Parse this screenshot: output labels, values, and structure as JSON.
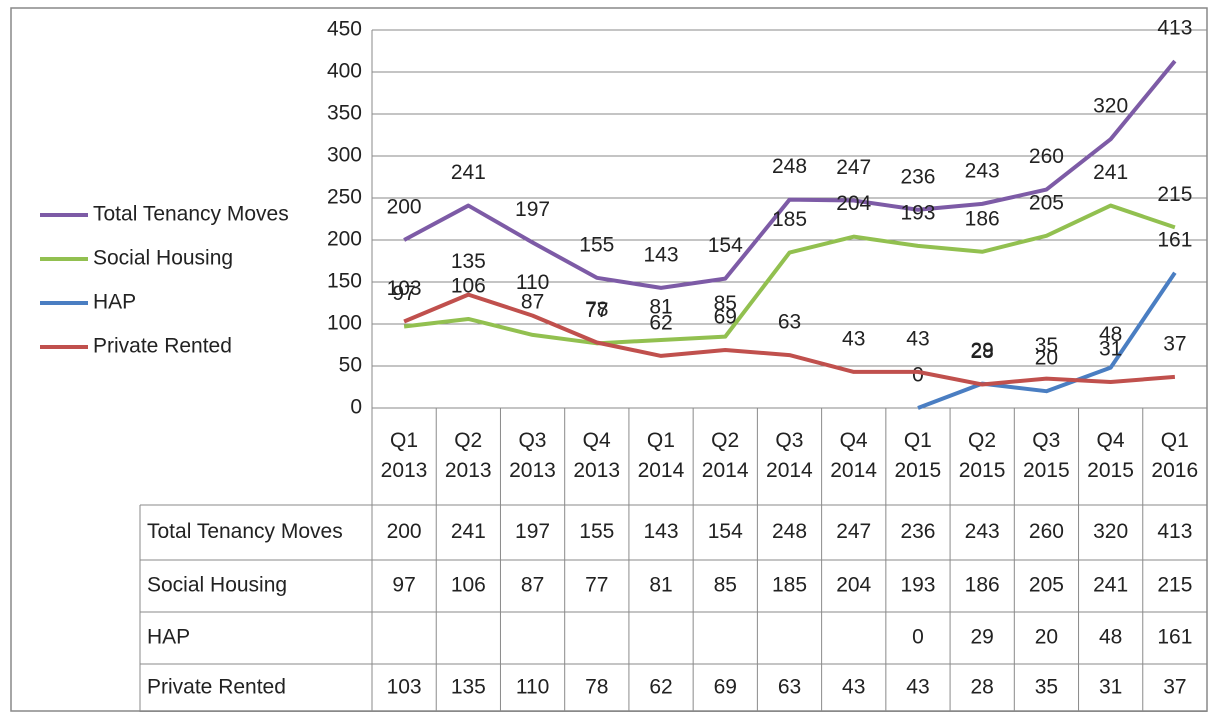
{
  "chart_data": {
    "type": "line",
    "categories": [
      "Q1 2013",
      "Q2 2013",
      "Q3 2013",
      "Q4 2013",
      "Q1 2014",
      "Q2 2014",
      "Q3 2014",
      "Q4 2014",
      "Q1 2015",
      "Q2 2015",
      "Q3 2015",
      "Q4 2015",
      "Q1 2016"
    ],
    "series": [
      {
        "name": "Total Tenancy Moves",
        "color": "#7d5ba6",
        "values": [
          200,
          241,
          197,
          155,
          143,
          154,
          248,
          247,
          236,
          243,
          260,
          320,
          413
        ]
      },
      {
        "name": "Social Housing",
        "color": "#92c050",
        "values": [
          97,
          106,
          87,
          77,
          81,
          85,
          185,
          204,
          193,
          186,
          205,
          241,
          215
        ]
      },
      {
        "name": "HAP",
        "color": "#4a7ec2",
        "values": [
          null,
          null,
          null,
          null,
          null,
          null,
          null,
          null,
          0,
          29,
          20,
          48,
          161
        ]
      },
      {
        "name": "Private Rented",
        "color": "#c0504d",
        "values": [
          103,
          135,
          110,
          78,
          62,
          69,
          63,
          43,
          43,
          28,
          35,
          31,
          37
        ]
      }
    ],
    "ylim": [
      0,
      450
    ],
    "yticks": [
      0,
      50,
      100,
      150,
      200,
      250,
      300,
      350,
      400,
      450
    ],
    "grid": true,
    "legend": "left",
    "data_table": true
  }
}
